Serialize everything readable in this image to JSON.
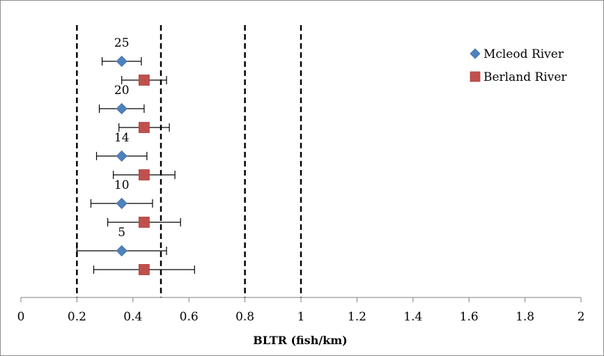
{
  "chart_data": {
    "type": "scatter",
    "title": "",
    "xlabel": "BLTR (fish/km)",
    "ylabel": "",
    "xlim": [
      0,
      2
    ],
    "x_ticks": [
      "0",
      "0.2",
      "0.4",
      "0.6",
      "0.8",
      "1",
      "1.2",
      "1.4",
      "1.6",
      "1.8",
      "2"
    ],
    "grid": false,
    "legend_position": "top-right",
    "reference_lines_x": [
      0.2,
      0.5,
      0.8,
      1.0
    ],
    "groups": [
      {
        "label": "25",
        "mcleod": {
          "value": 0.36,
          "low": 0.29,
          "high": 0.43
        },
        "berland": {
          "value": 0.44,
          "low": 0.36,
          "high": 0.52
        }
      },
      {
        "label": "20",
        "mcleod": {
          "value": 0.36,
          "low": 0.28,
          "high": 0.44
        },
        "berland": {
          "value": 0.44,
          "low": 0.35,
          "high": 0.53
        }
      },
      {
        "label": "14",
        "mcleod": {
          "value": 0.36,
          "low": 0.27,
          "high": 0.45
        },
        "berland": {
          "value": 0.44,
          "low": 0.33,
          "high": 0.55
        }
      },
      {
        "label": "10",
        "mcleod": {
          "value": 0.36,
          "low": 0.25,
          "high": 0.47
        },
        "berland": {
          "value": 0.44,
          "low": 0.31,
          "high": 0.57
        }
      },
      {
        "label": "5",
        "mcleod": {
          "value": 0.36,
          "low": 0.2,
          "high": 0.52
        },
        "berland": {
          "value": 0.44,
          "low": 0.26,
          "high": 0.62
        }
      }
    ],
    "series": [
      {
        "name": "Mcleod River",
        "marker": "diamond",
        "color": "#4f81bd"
      },
      {
        "name": "Berland River",
        "marker": "square",
        "color": "#c0504d"
      }
    ]
  }
}
